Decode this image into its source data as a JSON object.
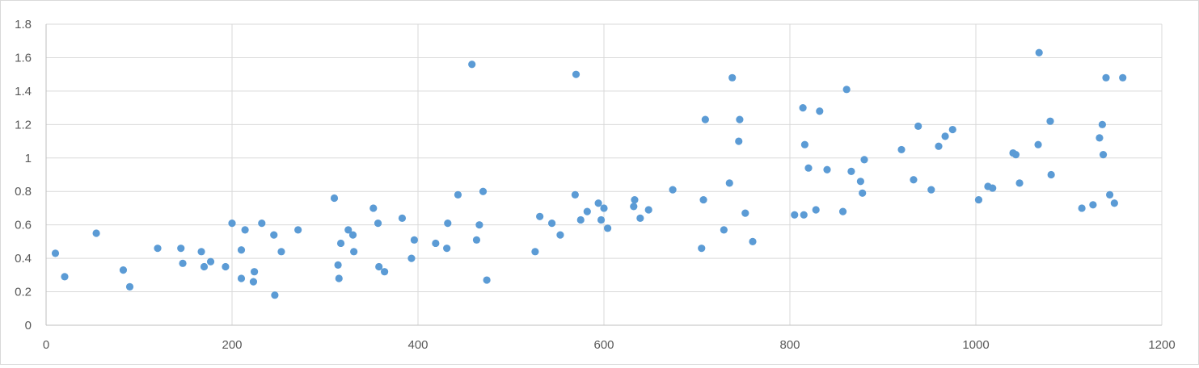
{
  "chart_data": {
    "type": "scatter",
    "title": "",
    "xlabel": "",
    "ylabel": "",
    "xlim": [
      0,
      1200
    ],
    "ylim": [
      0,
      1.8
    ],
    "x_ticks": [
      0,
      200,
      400,
      600,
      800,
      1000,
      1200
    ],
    "y_ticks": [
      0,
      0.2,
      0.4,
      0.6,
      0.8,
      1,
      1.2,
      1.4,
      1.6,
      1.8
    ],
    "x_tick_labels": [
      "0",
      "200",
      "400",
      "600",
      "800",
      "1000",
      "1200"
    ],
    "y_tick_labels": [
      "0",
      "0.2",
      "0.4",
      "0.6",
      "0.8",
      "1",
      "1.2",
      "1.4",
      "1.6",
      "1.8"
    ],
    "grid": true,
    "legend": "none",
    "marker_color": "#5B9BD5",
    "series": [
      {
        "points": [
          [
            10,
            0.43
          ],
          [
            20,
            0.29
          ],
          [
            54,
            0.55
          ],
          [
            83,
            0.33
          ],
          [
            90,
            0.23
          ],
          [
            120,
            0.46
          ],
          [
            145,
            0.46
          ],
          [
            147,
            0.37
          ],
          [
            167,
            0.44
          ],
          [
            170,
            0.35
          ],
          [
            177,
            0.38
          ],
          [
            193,
            0.35
          ],
          [
            200,
            0.61
          ],
          [
            210,
            0.28
          ],
          [
            210,
            0.45
          ],
          [
            214,
            0.57
          ],
          [
            223,
            0.26
          ],
          [
            224,
            0.32
          ],
          [
            232,
            0.61
          ],
          [
            245,
            0.54
          ],
          [
            246,
            0.18
          ],
          [
            253,
            0.44
          ],
          [
            271,
            0.57
          ],
          [
            310,
            0.76
          ],
          [
            314,
            0.36
          ],
          [
            315,
            0.28
          ],
          [
            317,
            0.49
          ],
          [
            325,
            0.57
          ],
          [
            330,
            0.54
          ],
          [
            331,
            0.44
          ],
          [
            352,
            0.7
          ],
          [
            357,
            0.61
          ],
          [
            358,
            0.35
          ],
          [
            364,
            0.32
          ],
          [
            383,
            0.64
          ],
          [
            393,
            0.4
          ],
          [
            396,
            0.51
          ],
          [
            419,
            0.49
          ],
          [
            431,
            0.46
          ],
          [
            432,
            0.61
          ],
          [
            443,
            0.78
          ],
          [
            458,
            1.56
          ],
          [
            463,
            0.51
          ],
          [
            466,
            0.6
          ],
          [
            470,
            0.8
          ],
          [
            474,
            0.27
          ],
          [
            526,
            0.44
          ],
          [
            531,
            0.65
          ],
          [
            544,
            0.61
          ],
          [
            553,
            0.54
          ],
          [
            569,
            0.78
          ],
          [
            570,
            1.5
          ],
          [
            575,
            0.63
          ],
          [
            582,
            0.68
          ],
          [
            594,
            0.73
          ],
          [
            597,
            0.63
          ],
          [
            600,
            0.7
          ],
          [
            604,
            0.58
          ],
          [
            632,
            0.71
          ],
          [
            633,
            0.75
          ],
          [
            639,
            0.64
          ],
          [
            648,
            0.69
          ],
          [
            674,
            0.81
          ],
          [
            705,
            0.46
          ],
          [
            707,
            0.75
          ],
          [
            709,
            1.23
          ],
          [
            729,
            0.57
          ],
          [
            735,
            0.85
          ],
          [
            738,
            1.48
          ],
          [
            745,
            1.1
          ],
          [
            746,
            1.23
          ],
          [
            752,
            0.67
          ],
          [
            760,
            0.5
          ],
          [
            805,
            0.66
          ],
          [
            814,
            1.3
          ],
          [
            815,
            0.66
          ],
          [
            816,
            1.08
          ],
          [
            820,
            0.94
          ],
          [
            828,
            0.69
          ],
          [
            832,
            1.28
          ],
          [
            840,
            0.93
          ],
          [
            857,
            0.68
          ],
          [
            861,
            1.41
          ],
          [
            866,
            0.92
          ],
          [
            876,
            0.86
          ],
          [
            878,
            0.79
          ],
          [
            880,
            0.99
          ],
          [
            920,
            1.05
          ],
          [
            933,
            0.87
          ],
          [
            938,
            1.19
          ],
          [
            952,
            0.81
          ],
          [
            960,
            1.07
          ],
          [
            967,
            1.13
          ],
          [
            975,
            1.17
          ],
          [
            1003,
            0.75
          ],
          [
            1013,
            0.83
          ],
          [
            1018,
            0.82
          ],
          [
            1040,
            1.03
          ],
          [
            1043,
            1.02
          ],
          [
            1047,
            0.85
          ],
          [
            1067,
            1.08
          ],
          [
            1068,
            1.63
          ],
          [
            1080,
            1.22
          ],
          [
            1081,
            0.9
          ],
          [
            1114,
            0.7
          ],
          [
            1126,
            0.72
          ],
          [
            1133,
            1.12
          ],
          [
            1136,
            1.2
          ],
          [
            1137,
            1.02
          ],
          [
            1140,
            1.48
          ],
          [
            1144,
            0.78
          ],
          [
            1149,
            0.73
          ],
          [
            1158,
            1.48
          ]
        ]
      }
    ]
  }
}
